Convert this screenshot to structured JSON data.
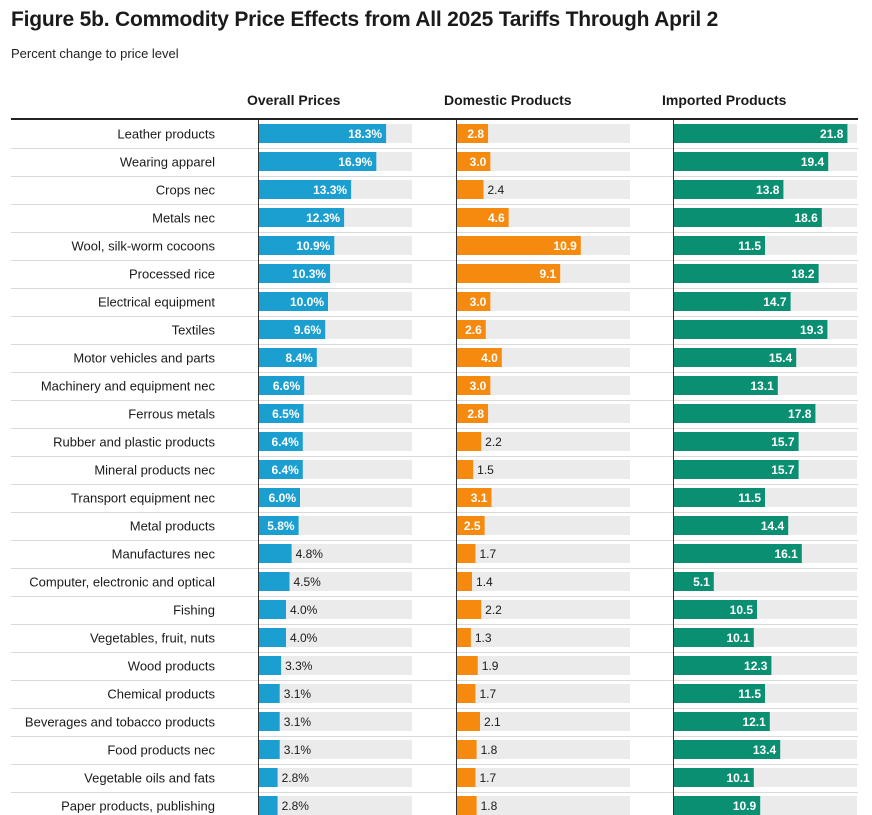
{
  "title": "Figure 5b. Commodity Price Effects from All 2025 Tariffs Through April 2",
  "subtitle": "Percent change to price level",
  "colors": {
    "overall": "#1b9fd0",
    "domestic": "#f68a0e",
    "imported": "#0b8f73",
    "track": "#ebebeb",
    "row_divider": "#d9d9d9",
    "axis": "#333333"
  },
  "chart_data": {
    "type": "bar",
    "orientation": "horizontal",
    "title": "Figure 5b. Commodity Price Effects from All 2025 Tariffs Through April 2",
    "subtitle": "Percent change to price level",
    "categories": [
      "Leather products",
      "Wearing apparel",
      "Crops nec",
      "Metals nec",
      "Wool, silk-worm cocoons",
      "Processed rice",
      "Electrical equipment",
      "Textiles",
      "Motor vehicles and parts",
      "Machinery and equipment nec",
      "Ferrous metals",
      "Rubber and plastic products",
      "Mineral products nec",
      "Transport equipment nec",
      "Metal products",
      "Manufactures nec",
      "Computer, electronic and optical",
      "Fishing",
      "Vegetables, fruit, nuts",
      "Wood products",
      "Chemical products",
      "Beverages and tobacco products",
      "Food products nec",
      "Vegetable oils and fats",
      "Paper products, publishing"
    ],
    "series": [
      {
        "name": "Overall Prices",
        "color": "#1b9fd0",
        "suffix": "%",
        "xlim": [
          0,
          22
        ],
        "values": [
          18.3,
          16.9,
          13.3,
          12.3,
          10.9,
          10.3,
          10.0,
          9.6,
          8.4,
          6.6,
          6.5,
          6.4,
          6.4,
          6.0,
          5.8,
          4.8,
          4.5,
          4.0,
          4.0,
          3.3,
          3.1,
          3.1,
          3.1,
          2.8,
          2.8
        ],
        "labels": [
          "18.3%",
          "16.9%",
          "13.3%",
          "12.3%",
          "10.9%",
          "10.3%",
          "10.0%",
          "9.6%",
          "8.4%",
          "6.6%",
          "6.5%",
          "6.4%",
          "6.4%",
          "6.0%",
          "5.8%",
          "4.8%",
          "4.5%",
          "4.0%",
          "4.0%",
          "3.3%",
          "3.1%",
          "3.1%",
          "3.1%",
          "2.8%",
          "2.8%"
        ]
      },
      {
        "name": "Domestic Products",
        "color": "#f68a0e",
        "suffix": "",
        "xlim": [
          0,
          15.2
        ],
        "values": [
          2.8,
          3.0,
          2.4,
          4.6,
          10.9,
          9.1,
          3.0,
          2.6,
          4.0,
          3.0,
          2.8,
          2.2,
          1.5,
          3.1,
          2.5,
          1.7,
          1.4,
          2.2,
          1.3,
          1.9,
          1.7,
          2.1,
          1.8,
          1.7,
          1.8
        ],
        "labels": [
          "2.8",
          "3.0",
          "2.4",
          "4.6",
          "10.9",
          "9.1",
          "3.0",
          "2.6",
          "4.0",
          "3.0",
          "2.8",
          "2.2",
          "1.5",
          "3.1",
          "2.5",
          "1.7",
          "1.4",
          "2.2",
          "1.3",
          "1.9",
          "1.7",
          "2.1",
          "1.8",
          "1.7",
          "1.8"
        ]
      },
      {
        "name": "Imported Products",
        "color": "#0b8f73",
        "suffix": "",
        "xlim": [
          0,
          23
        ],
        "values": [
          21.8,
          19.4,
          13.8,
          18.6,
          11.5,
          18.2,
          14.7,
          19.3,
          15.4,
          13.1,
          17.8,
          15.7,
          15.7,
          11.5,
          14.4,
          16.1,
          5.1,
          10.5,
          10.1,
          12.3,
          11.5,
          12.1,
          13.4,
          10.1,
          10.9
        ],
        "labels": [
          "21.8",
          "19.4",
          "13.8",
          "18.6",
          "11.5",
          "18.2",
          "14.7",
          "19.3",
          "15.4",
          "13.1",
          "17.8",
          "15.7",
          "15.7",
          "11.5",
          "14.4",
          "16.1",
          "5.1",
          "10.5",
          "10.1",
          "12.3",
          "11.5",
          "12.1",
          "13.4",
          "10.1",
          "10.9"
        ]
      }
    ],
    "grid": false,
    "legend": "none"
  }
}
